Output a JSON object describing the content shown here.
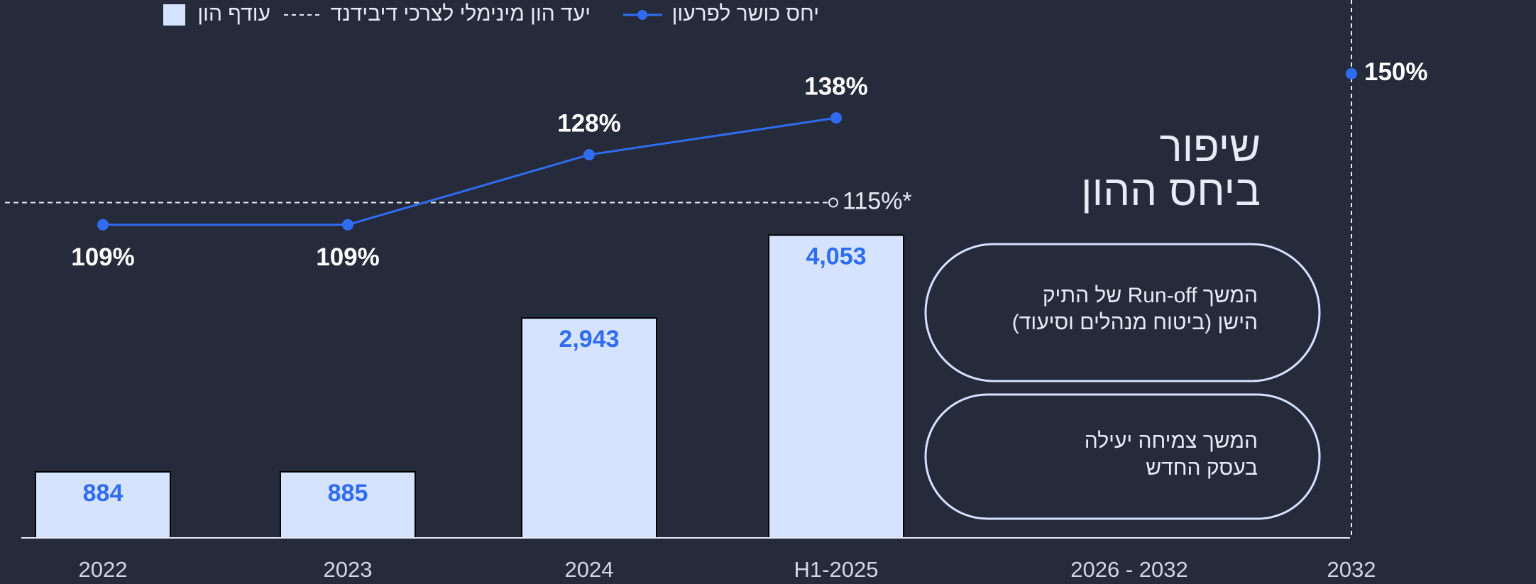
{
  "chart_data": {
    "type": "bar-line",
    "title_lines": [
      "שיפור",
      "ביחס ההון"
    ],
    "categories": [
      "2022",
      "2023",
      "2024",
      "H1-2025",
      "2026 - 2032",
      "2032"
    ],
    "series": [
      {
        "name": "עודף הון",
        "type": "bar",
        "color": "#d5e3ff",
        "values": [
          884,
          885,
          2943,
          4053,
          null,
          null
        ],
        "value_labels": [
          "884",
          "885",
          "2,943",
          "4,053",
          null,
          null
        ]
      },
      {
        "name": "יחס כושר לפרעון",
        "type": "line",
        "axis": "y2",
        "color": "#2f6cf0",
        "values": [
          109,
          109,
          128,
          138,
          null,
          150
        ],
        "value_labels": [
          "109%",
          "109%",
          "128%",
          "138%",
          null,
          "150%"
        ]
      }
    ],
    "threshold": {
      "name": "יעד הון מינימלי לצרכי דיבידנד",
      "value": 115,
      "label": "115%*",
      "axis": "y2"
    },
    "ylim": [
      0,
      7200
    ],
    "y2lim": [
      24,
      170
    ],
    "notes": [
      [
        "המשך Run-off של התיק",
        "הישן (ביטוח מנהלים וסיעוד)"
      ],
      [
        "המשך צמיחה יעילה",
        "בעסק החדש"
      ]
    ]
  }
}
